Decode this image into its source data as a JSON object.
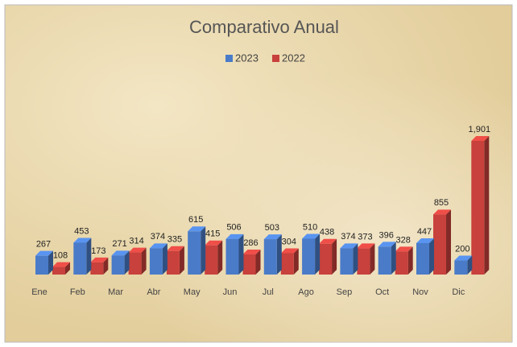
{
  "chart_data": {
    "type": "bar3d",
    "title": "Comparativo Anual",
    "categories": [
      "Ene",
      "Feb",
      "Mar",
      "Abr",
      "May",
      "Jun",
      "Jul",
      "Ago",
      "Sep",
      "Oct",
      "Nov",
      "Dic"
    ],
    "series": [
      {
        "name": "2023",
        "color": "#4a7bc8",
        "values": [
          267,
          453,
          271,
          374,
          615,
          506,
          503,
          510,
          374,
          396,
          447,
          200
        ]
      },
      {
        "name": "2022",
        "color": "#c8413c",
        "values": [
          108,
          173,
          314,
          335,
          415,
          286,
          304,
          438,
          373,
          328,
          855,
          1901
        ],
        "value_labels": [
          "108",
          "173",
          "314",
          "335",
          "415",
          "286",
          "304",
          "438",
          "373",
          "328",
          "855",
          "1,901"
        ]
      }
    ],
    "legend": "top"
  }
}
